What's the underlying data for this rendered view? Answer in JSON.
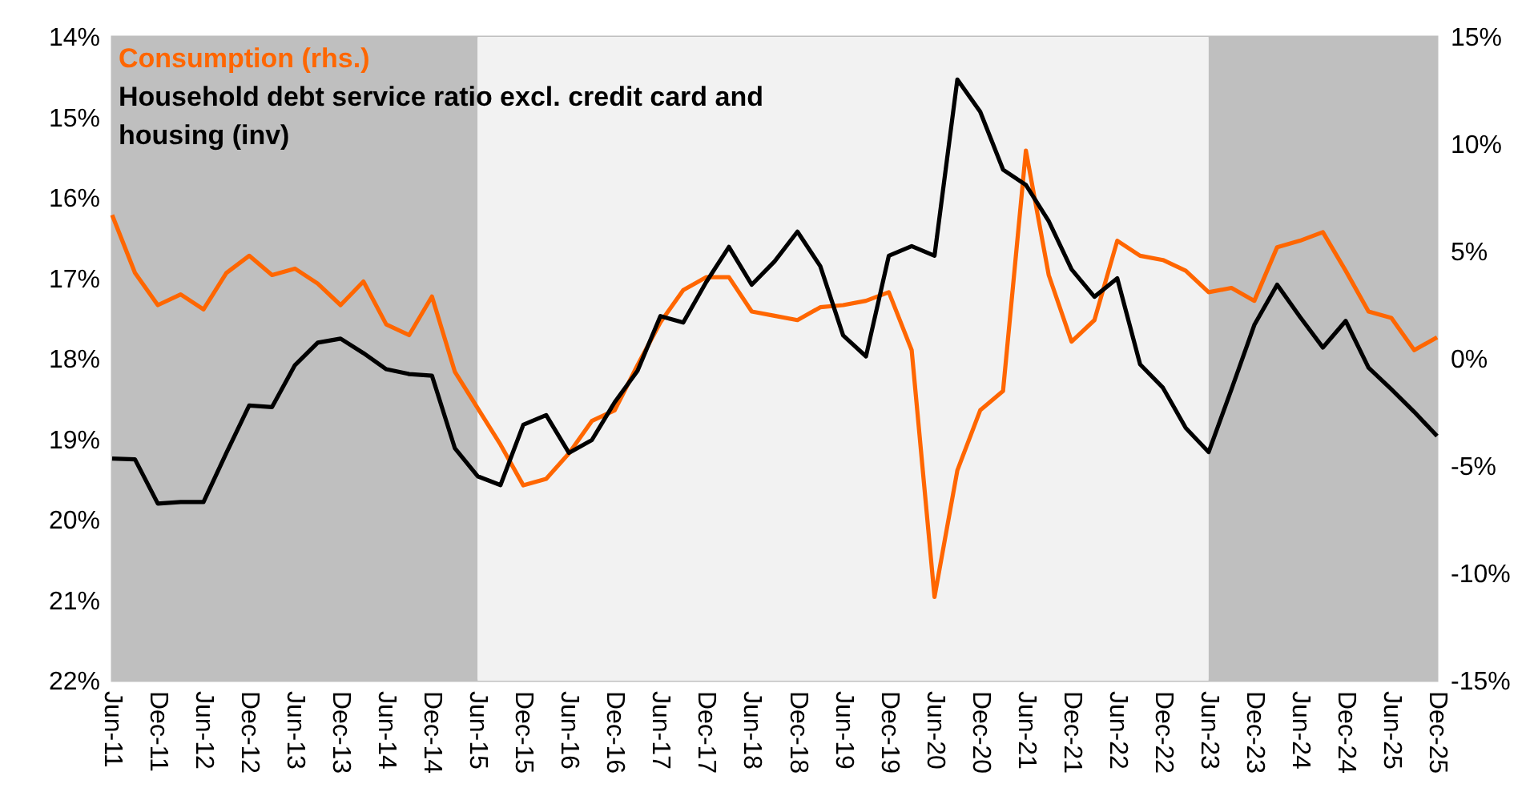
{
  "chart_data": {
    "type": "line",
    "categories": [
      "Jun-11",
      null,
      "Dec-11",
      null,
      "Jun-12",
      null,
      "Dec-12",
      null,
      "Jun-13",
      null,
      "Dec-13",
      null,
      "Jun-14",
      null,
      "Dec-14",
      null,
      "Jun-15",
      null,
      "Dec-15",
      null,
      "Jun-16",
      null,
      "Dec-16",
      null,
      "Jun-17",
      null,
      "Dec-17",
      null,
      "Jun-18",
      null,
      "Dec-18",
      null,
      "Jun-19",
      null,
      "Dec-19",
      null,
      "Jun-20",
      null,
      "Dec-20",
      null,
      "Jun-21",
      null,
      "Dec-21",
      null,
      "Jun-22",
      null,
      "Dec-22",
      null,
      "Jun-23",
      null,
      "Dec-23",
      null,
      "Jun-24",
      null,
      "Dec-24",
      null,
      "Jun-25",
      null,
      "Dec-25"
    ],
    "series": [
      {
        "name": "Consumption (rhs.)",
        "color": "#ff6600",
        "axis": "y2",
        "values": [
          6.7,
          4.0,
          2.5,
          3.0,
          2.3,
          4.0,
          4.8,
          3.9,
          4.2,
          3.5,
          2.5,
          3.6,
          1.6,
          1.1,
          2.9,
          -0.6,
          -2.3,
          -4.0,
          -5.9,
          -5.6,
          -4.4,
          -2.9,
          -2.4,
          -0.3,
          1.7,
          3.2,
          3.8,
          3.8,
          2.2,
          2.0,
          1.8,
          2.4,
          2.5,
          2.7,
          3.1,
          0.4,
          -11.1,
          -5.2,
          -2.4,
          -1.5,
          9.7,
          3.9,
          0.8,
          1.8,
          5.5,
          4.8,
          4.6,
          4.1,
          3.1,
          3.3,
          2.7,
          5.2,
          5.5,
          5.9,
          4.1,
          2.2,
          1.9,
          0.4,
          1.0
        ]
      },
      {
        "name": "Household debt service ratio excl. credit card and housing (inv)",
        "color": "#000000",
        "values": [
          19.24,
          19.25,
          19.8,
          19.78,
          19.78,
          19.17,
          18.58,
          18.6,
          18.08,
          17.8,
          17.75,
          17.93,
          18.13,
          18.19,
          18.21,
          19.11,
          19.46,
          19.57,
          18.82,
          18.7,
          19.17,
          19.01,
          18.54,
          18.15,
          17.47,
          17.55,
          17.05,
          16.61,
          17.08,
          16.79,
          16.42,
          16.85,
          17.71,
          17.97,
          16.72,
          16.6,
          16.72,
          14.53,
          14.93,
          15.65,
          15.84,
          16.29,
          16.89,
          17.23,
          17.0,
          18.07,
          18.36,
          18.86,
          19.16,
          18.38,
          17.58,
          17.08,
          17.48,
          17.86,
          17.53,
          18.11,
          18.38,
          18.66,
          18.96
        ]
      }
    ],
    "ylim": [
      22,
      14
    ],
    "yticks": [
      {
        "value": 14,
        "label": "14%"
      },
      {
        "value": 15,
        "label": "15%"
      },
      {
        "value": 16,
        "label": "16%"
      },
      {
        "value": 17,
        "label": "17%"
      },
      {
        "value": 18,
        "label": "18%"
      },
      {
        "value": 19,
        "label": "19%"
      },
      {
        "value": 20,
        "label": "20%"
      },
      {
        "value": 21,
        "label": "21%"
      },
      {
        "value": 22,
        "label": "22%"
      }
    ],
    "y2lim": [
      -15,
      15
    ],
    "y2ticks": [
      {
        "value": -15,
        "label": "-15%"
      },
      {
        "value": -10,
        "label": "-10%"
      },
      {
        "value": -5,
        "label": "-5%"
      },
      {
        "value": 0,
        "label": "0%"
      },
      {
        "value": 5,
        "label": "5%"
      },
      {
        "value": 10,
        "label": "10%"
      },
      {
        "value": 15,
        "label": "15%"
      }
    ],
    "bands": [
      {
        "axis": "x",
        "from": "Jun-11",
        "to": "Jun-15",
        "color": "#bfbfbf"
      },
      {
        "axis": "x",
        "from": "Jun-15",
        "to": "Jun-23",
        "color": "#f2f2f2"
      },
      {
        "axis": "x",
        "from": "Jun-23",
        "to": "Dec-25",
        "color": "#bfbfbf"
      }
    ],
    "legend": "top left"
  }
}
